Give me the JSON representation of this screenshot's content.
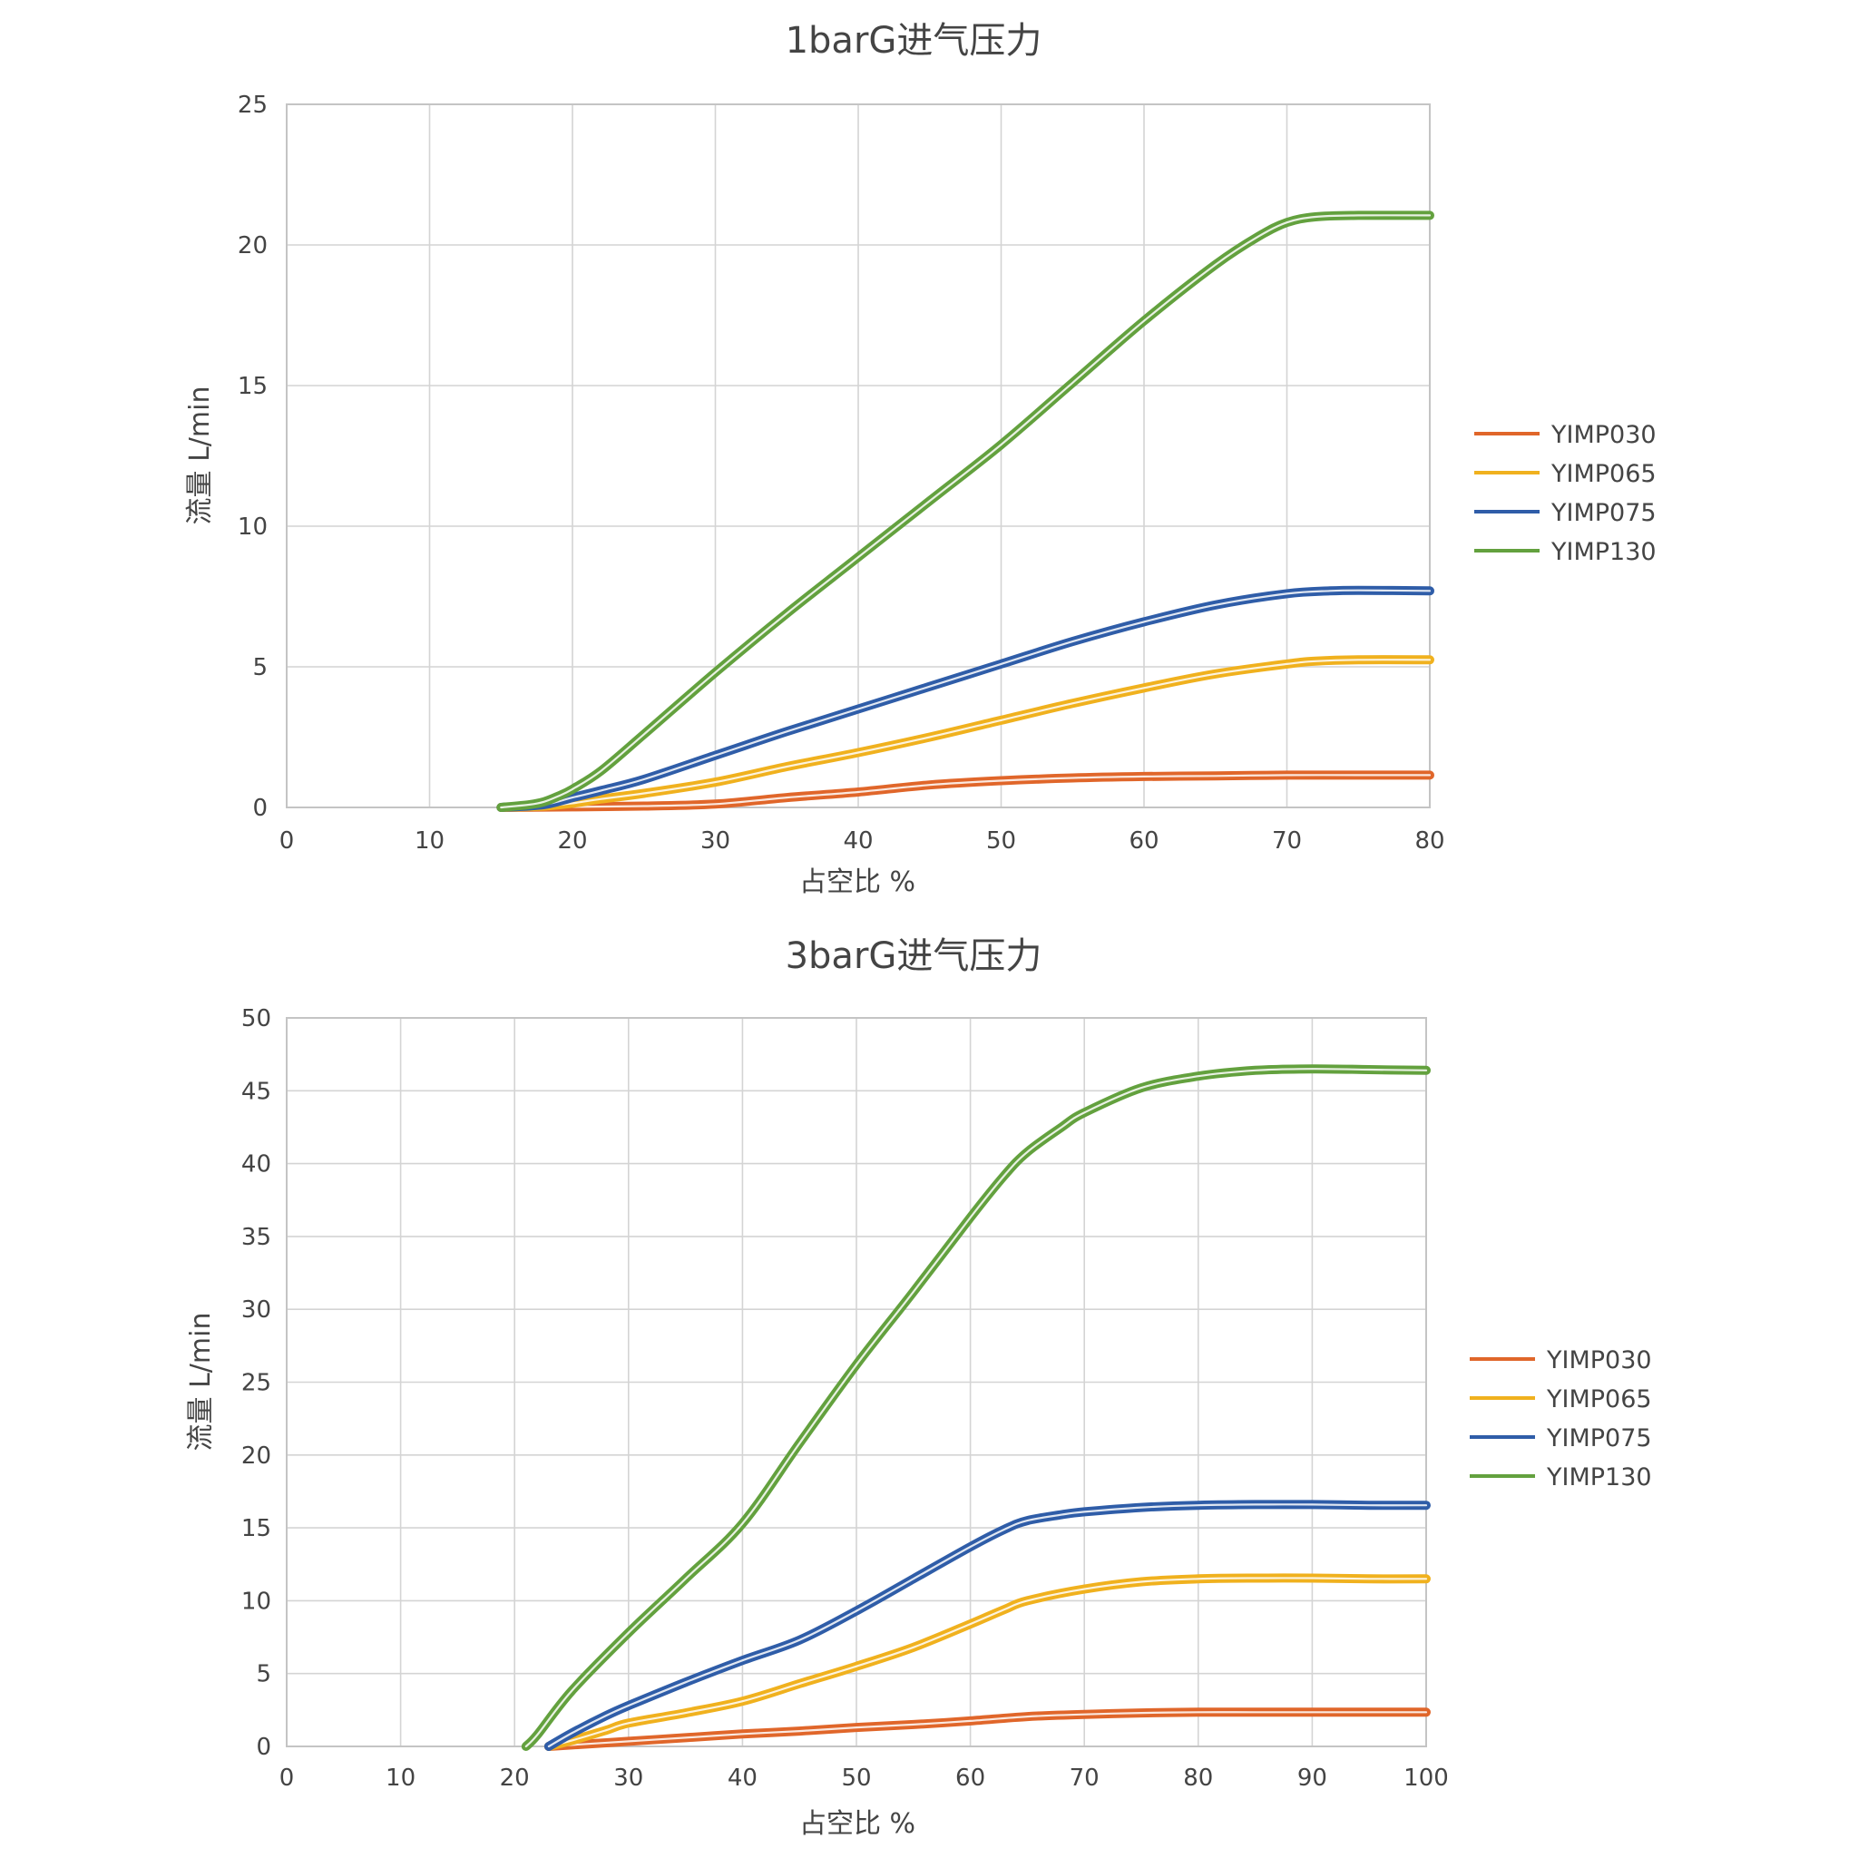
{
  "chart_data": [
    {
      "type": "line",
      "title": "1barG进气压力",
      "xlabel": "占空比 %",
      "ylabel": "流量 L/min",
      "xlim": [
        0,
        80
      ],
      "ylim": [
        0,
        25
      ],
      "xticks": [
        "0",
        "10",
        "20",
        "30",
        "40",
        "50",
        "60",
        "70",
        "80"
      ],
      "yticks": [
        "0",
        "5",
        "10",
        "15",
        "20",
        "25"
      ],
      "grid": true,
      "legend": "right",
      "series": [
        {
          "name": "YIMP030",
          "color": "#E0662A",
          "x": [
            15,
            20,
            25,
            30,
            35,
            40,
            45,
            50,
            55,
            60,
            65,
            70,
            75,
            80
          ],
          "y": [
            0,
            0.02,
            0.05,
            0.12,
            0.35,
            0.55,
            0.8,
            0.95,
            1.05,
            1.1,
            1.12,
            1.15,
            1.15,
            1.15
          ]
        },
        {
          "name": "YIMP065",
          "color": "#F0B11E",
          "x": [
            15,
            18,
            20,
            22,
            25,
            30,
            35,
            40,
            45,
            50,
            55,
            60,
            65,
            70,
            72,
            75,
            80
          ],
          "y": [
            0,
            0.05,
            0.15,
            0.3,
            0.5,
            0.9,
            1.45,
            1.95,
            2.5,
            3.1,
            3.7,
            4.25,
            4.75,
            5.1,
            5.2,
            5.25,
            5.25
          ]
        },
        {
          "name": "YIMP075",
          "color": "#2F5DA8",
          "x": [
            15,
            18,
            20,
            22,
            25,
            30,
            35,
            40,
            45,
            50,
            55,
            60,
            65,
            70,
            73,
            75,
            80
          ],
          "y": [
            0,
            0.1,
            0.35,
            0.6,
            1.0,
            1.85,
            2.7,
            3.5,
            4.3,
            5.1,
            5.9,
            6.6,
            7.2,
            7.6,
            7.7,
            7.72,
            7.7
          ]
        },
        {
          "name": "YIMP130",
          "color": "#63A13E",
          "x": [
            15,
            17,
            18,
            19,
            20,
            22,
            25,
            30,
            35,
            40,
            45,
            50,
            55,
            60,
            65,
            68,
            70,
            72,
            75,
            80
          ],
          "y": [
            0,
            0.1,
            0.2,
            0.4,
            0.65,
            1.3,
            2.6,
            4.8,
            6.9,
            8.9,
            10.9,
            12.9,
            15.1,
            17.3,
            19.3,
            20.3,
            20.8,
            21.0,
            21.05,
            21.05
          ]
        }
      ]
    },
    {
      "type": "line",
      "title": "3barG进气压力",
      "xlabel": "占空比 %",
      "ylabel": "流量 L/min",
      "xlim": [
        0,
        100
      ],
      "ylim": [
        0,
        50
      ],
      "xticks": [
        "0",
        "10",
        "20",
        "30",
        "40",
        "50",
        "60",
        "70",
        "80",
        "90",
        "100"
      ],
      "yticks": [
        "0",
        "5",
        "10",
        "15",
        "20",
        "25",
        "30",
        "35",
        "40",
        "45",
        "50"
      ],
      "grid": true,
      "legend": "right",
      "series": [
        {
          "name": "YIMP030",
          "color": "#E0662A",
          "x": [
            23,
            25,
            30,
            35,
            40,
            45,
            50,
            55,
            60,
            65,
            70,
            75,
            80,
            85,
            90,
            95,
            100
          ],
          "y": [
            0,
            0.1,
            0.35,
            0.6,
            0.85,
            1.05,
            1.3,
            1.5,
            1.75,
            2.05,
            2.2,
            2.3,
            2.35,
            2.35,
            2.35,
            2.35,
            2.35
          ]
        },
        {
          "name": "YIMP065",
          "color": "#F0B11E",
          "x": [
            23,
            25,
            28,
            30,
            35,
            40,
            45,
            50,
            55,
            60,
            63,
            65,
            70,
            75,
            80,
            85,
            90,
            95,
            100
          ],
          "y": [
            0,
            0.4,
            1.1,
            1.6,
            2.3,
            3.1,
            4.3,
            5.5,
            6.8,
            8.4,
            9.4,
            10.0,
            10.8,
            11.3,
            11.5,
            11.55,
            11.55,
            11.5,
            11.5
          ]
        },
        {
          "name": "YIMP075",
          "color": "#2F5DA8",
          "x": [
            23,
            25,
            28,
            30,
            35,
            40,
            45,
            50,
            55,
            60,
            63,
            65,
            68,
            70,
            75,
            80,
            85,
            90,
            95,
            100
          ],
          "y": [
            0,
            0.9,
            2.1,
            2.8,
            4.4,
            5.9,
            7.3,
            9.3,
            11.5,
            13.7,
            14.9,
            15.5,
            15.9,
            16.1,
            16.4,
            16.55,
            16.6,
            16.6,
            16.55,
            16.55
          ]
        },
        {
          "name": "YIMP130",
          "color": "#63A13E",
          "x": [
            21,
            22,
            25,
            30,
            35,
            40,
            45,
            50,
            55,
            60,
            63,
            65,
            68,
            70,
            75,
            80,
            85,
            90,
            95,
            100
          ],
          "y": [
            0,
            0.8,
            3.8,
            7.8,
            11.5,
            15.3,
            20.8,
            26.2,
            31.2,
            36.3,
            39.2,
            40.8,
            42.5,
            43.5,
            45.2,
            46.0,
            46.4,
            46.5,
            46.45,
            46.4
          ]
        }
      ]
    }
  ]
}
